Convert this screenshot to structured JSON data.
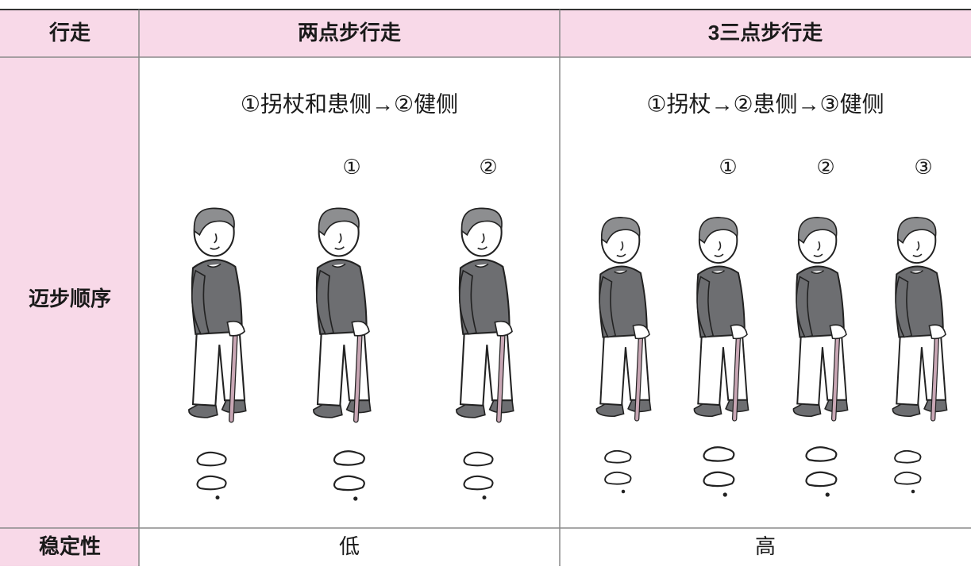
{
  "table": {
    "header": [
      "行走",
      "两点步行走",
      "3三点步行走"
    ],
    "order_row": {
      "label": "迈步顺序",
      "cells": [
        {
          "sequence": "①拐杖和患侧→②健侧",
          "steps": [
            "①",
            "②"
          ]
        },
        {
          "sequence": "①拐杖→②患侧→③健侧",
          "steps": [
            "①",
            "②",
            "③"
          ]
        }
      ]
    },
    "stability_row": [
      "稳定性",
      "低",
      "高"
    ]
  }
}
